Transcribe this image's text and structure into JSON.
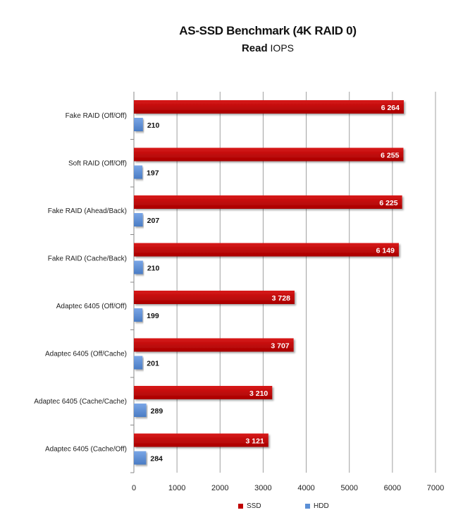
{
  "chart_data": {
    "type": "bar",
    "orientation": "horizontal",
    "title": "AS-SSD Benchmark (4K RAID 0)",
    "subtitle_main": "Read",
    "subtitle_unit": "IOPS",
    "categories": [
      "Fake RAID (Off/Off)",
      "Soft RAID (Off/Off)",
      "Fake RAID (Ahead/Back)",
      "Fake RAID (Cache/Back)",
      "Adaptec 6405  (Off/Off)",
      "Adaptec 6405  (Off/Cache)",
      "Adaptec 6405  (Cache/Cache)",
      "Adaptec 6405  (Cache/Off)"
    ],
    "series": [
      {
        "name": "SSD",
        "color": "#c00000",
        "values": [
          6264,
          6255,
          6225,
          6149,
          3728,
          3707,
          3210,
          3121
        ],
        "labels": [
          "6 264",
          "6 255",
          "6 225",
          "6 149",
          "3 728",
          "3 707",
          "3 210",
          "3 121"
        ]
      },
      {
        "name": "HDD",
        "color": "#5b8fd6",
        "values": [
          210,
          197,
          207,
          210,
          199,
          201,
          289,
          284
        ],
        "labels": [
          "210",
          "197",
          "207",
          "210",
          "199",
          "201",
          "289",
          "284"
        ]
      }
    ],
    "xlim": [
      0,
      7000
    ],
    "xticks": [
      0,
      1000,
      2000,
      3000,
      4000,
      5000,
      6000,
      7000
    ],
    "grid": true,
    "legend_position": "bottom"
  }
}
